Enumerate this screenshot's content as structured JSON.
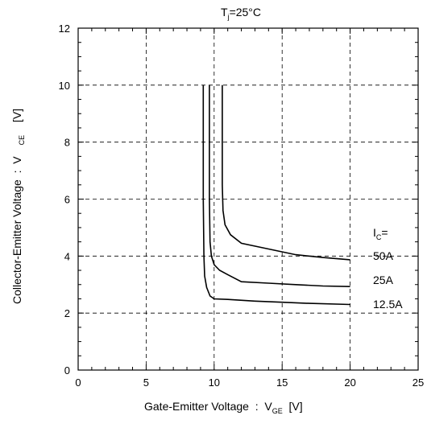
{
  "chart_data": {
    "type": "line",
    "title": "T",
    "title_sub": "j",
    "title_tail": "=25°C",
    "xlabel": "Gate-Emitter Voltage  :  V",
    "xlabel_sub": "GE",
    "xlabel_tail": "  [V]",
    "ylabel": "Collector-Emitter Voltage  :  V",
    "ylabel_sub": "CE",
    "ylabel_tail": "  [V]",
    "xlim": [
      0,
      25
    ],
    "ylim": [
      0,
      12
    ],
    "xticks": [
      0,
      5,
      10,
      15,
      20,
      25
    ],
    "yticks": [
      0,
      2,
      4,
      6,
      8,
      10,
      12
    ],
    "grid": true,
    "legend_header": "I",
    "legend_header_sub": "C",
    "legend_header_tail": "=",
    "series": [
      {
        "name": "12.5A",
        "points": [
          [
            9.2,
            10
          ],
          [
            9.2,
            6
          ],
          [
            9.25,
            4
          ],
          [
            9.3,
            3.3
          ],
          [
            9.45,
            2.9
          ],
          [
            9.7,
            2.6
          ],
          [
            10,
            2.5
          ],
          [
            11,
            2.48
          ],
          [
            13,
            2.42
          ],
          [
            15,
            2.38
          ],
          [
            17,
            2.34
          ],
          [
            20,
            2.3
          ]
        ]
      },
      {
        "name": "25A",
        "points": [
          [
            9.65,
            10
          ],
          [
            9.65,
            6
          ],
          [
            9.7,
            4.5
          ],
          [
            9.8,
            4.0
          ],
          [
            10,
            3.7
          ],
          [
            10.4,
            3.5
          ],
          [
            11,
            3.35
          ],
          [
            12,
            3.1
          ],
          [
            14,
            3.05
          ],
          [
            16,
            3.0
          ],
          [
            18,
            2.95
          ],
          [
            20,
            2.93
          ]
        ]
      },
      {
        "name": "50A",
        "points": [
          [
            10.6,
            10
          ],
          [
            10.6,
            6.5
          ],
          [
            10.65,
            5.6
          ],
          [
            10.8,
            5.1
          ],
          [
            11.2,
            4.75
          ],
          [
            12,
            4.45
          ],
          [
            14,
            4.25
          ],
          [
            16,
            4.05
          ],
          [
            18,
            3.95
          ],
          [
            20,
            3.87
          ]
        ]
      }
    ]
  }
}
